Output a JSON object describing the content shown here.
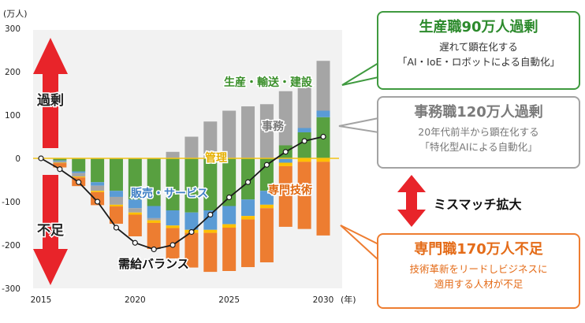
{
  "chart_data": {
    "type": "bar",
    "stacked": true,
    "unit_label": "(万人)",
    "x_unit_label": "(年)",
    "x": [
      2015,
      2016,
      2017,
      2018,
      2019,
      2020,
      2021,
      2022,
      2023,
      2024,
      2025,
      2026,
      2027,
      2028,
      2029,
      2030
    ],
    "x_tick_labels": [
      "2015",
      "2020",
      "2025",
      "2030"
    ],
    "ylim": [
      -300,
      300
    ],
    "y_ticks": [
      300,
      200,
      100,
      0,
      -100,
      -200,
      -300
    ],
    "series": [
      {
        "name": "生産・輸送・建設",
        "color": "#58a040",
        "values": [
          0,
          -5,
          -30,
          -55,
          -75,
          -95,
          -110,
          -120,
          -125,
          -120,
          -110,
          -95,
          -75,
          30,
          60,
          95
        ]
      },
      {
        "name": "販売・サービス",
        "color": "#5a9bd5",
        "values": [
          0,
          -2,
          -4,
          -8,
          -14,
          -20,
          -28,
          -35,
          -40,
          -45,
          -42,
          -38,
          -32,
          -10,
          10,
          15
        ]
      },
      {
        "name": "事務",
        "color": "#a5a5a5",
        "values": [
          0,
          -3,
          -8,
          -12,
          -18,
          -10,
          -5,
          15,
          50,
          85,
          110,
          120,
          125,
          125,
          120,
          115
        ]
      },
      {
        "name": "管理",
        "color": "#ffc000",
        "values": [
          0,
          -1,
          -2,
          -3,
          -4,
          -5,
          -6,
          -6,
          -7,
          -7,
          -8,
          -8,
          -8,
          -8,
          -8,
          -8
        ]
      },
      {
        "name": "専門技術",
        "color": "#ed7d31",
        "values": [
          0,
          -10,
          -20,
          -30,
          -40,
          -50,
          -60,
          -70,
          -80,
          -90,
          -100,
          -110,
          -125,
          -140,
          -155,
          -170
        ]
      }
    ],
    "balance": {
      "name": "需給バランス",
      "values": [
        0,
        -25,
        -55,
        -100,
        -160,
        -195,
        -210,
        -200,
        -170,
        -130,
        -90,
        -55,
        -15,
        15,
        40,
        50
      ]
    },
    "annotations": [
      "生産・輸送・建設",
      "事務",
      "管理",
      "販売・サービス",
      "専門技術",
      "需給バランス"
    ],
    "side_labels": {
      "over": "過剰",
      "short": "不足"
    }
  },
  "colors": {
    "up_arrow": "#e8242a",
    "down_arrow": "#e8242a",
    "mismatch_arrow": "#e8242a"
  },
  "callouts": {
    "green": {
      "title": "生産職90万人過剰",
      "sub1": "遅れて顕在化する",
      "sub2": "「AI・IoE・ロボットによる自動化」"
    },
    "gray": {
      "title": "事務職120万人過剰",
      "sub1": "20年代前半から顕在化する",
      "sub2": "「特化型AIによる自動化」"
    },
    "orange": {
      "title": "専門職170万人不足",
      "sub1": "技術革新をリードしビジネスに",
      "sub2": "適用する人材が不足"
    }
  },
  "mismatch": "ミスマッチ拡大"
}
